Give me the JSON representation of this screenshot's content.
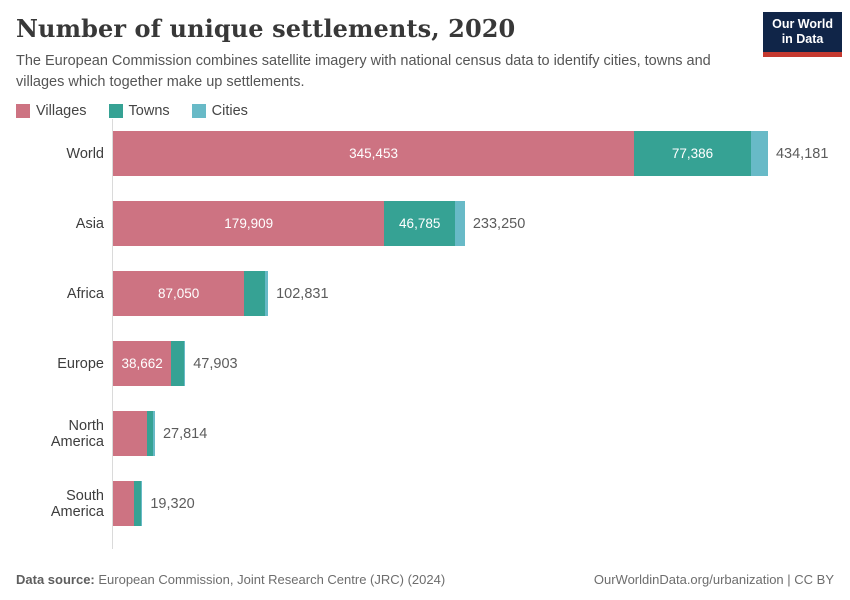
{
  "header": {
    "title": "Number of unique settlements, 2020",
    "subtitle": "The European Commission combines satellite imagery with national census data to identify cities, towns and villages which together make up settlements."
  },
  "logo": {
    "line1": "Our World",
    "line2": "in Data",
    "bg_color": "#102548",
    "accent_color": "#c5392f"
  },
  "legend": {
    "items": [
      {
        "label": "Villages",
        "color": "#cd7382"
      },
      {
        "label": "Towns",
        "color": "#36a294"
      },
      {
        "label": "Cities",
        "color": "#68bac7"
      }
    ]
  },
  "chart_data": {
    "type": "bar",
    "orientation": "horizontal",
    "stacked": true,
    "title": "Number of unique settlements, 2020",
    "categories": [
      "World",
      "Asia",
      "Africa",
      "Europe",
      "North America",
      "South America"
    ],
    "series": [
      {
        "name": "Villages",
        "color": "#cd7382",
        "values": [
          345453,
          179909,
          87050,
          38662,
          22400,
          14000
        ]
      },
      {
        "name": "Towns",
        "color": "#36a294",
        "values": [
          77386,
          46785,
          13900,
          8540,
          4414,
          4800
        ]
      },
      {
        "name": "Cities",
        "color": "#68bac7",
        "values": [
          11342,
          6556,
          1881,
          701,
          1000,
          520
        ]
      }
    ],
    "totals": [
      434181,
      233250,
      102831,
      47903,
      27814,
      19320
    ],
    "total_labels": [
      "434,181",
      "233,250",
      "102,831",
      "47,903",
      "27,814",
      "19,320"
    ],
    "segment_labels": [
      [
        "345,453",
        "77,386",
        ""
      ],
      [
        "179,909",
        "46,785",
        ""
      ],
      [
        "87,050",
        "",
        ""
      ],
      [
        "38,662",
        "",
        ""
      ],
      [
        "",
        "",
        ""
      ],
      [
        "",
        "",
        ""
      ]
    ],
    "xmax": 434181,
    "grid": false,
    "legend_position": "top",
    "axis_color": "#dadada"
  },
  "footer": {
    "source_label": "Data source:",
    "source_text": " European Commission, Joint Research Centre (JRC) (2024)",
    "right_text": "OurWorldinData.org/urbanization | CC BY"
  }
}
